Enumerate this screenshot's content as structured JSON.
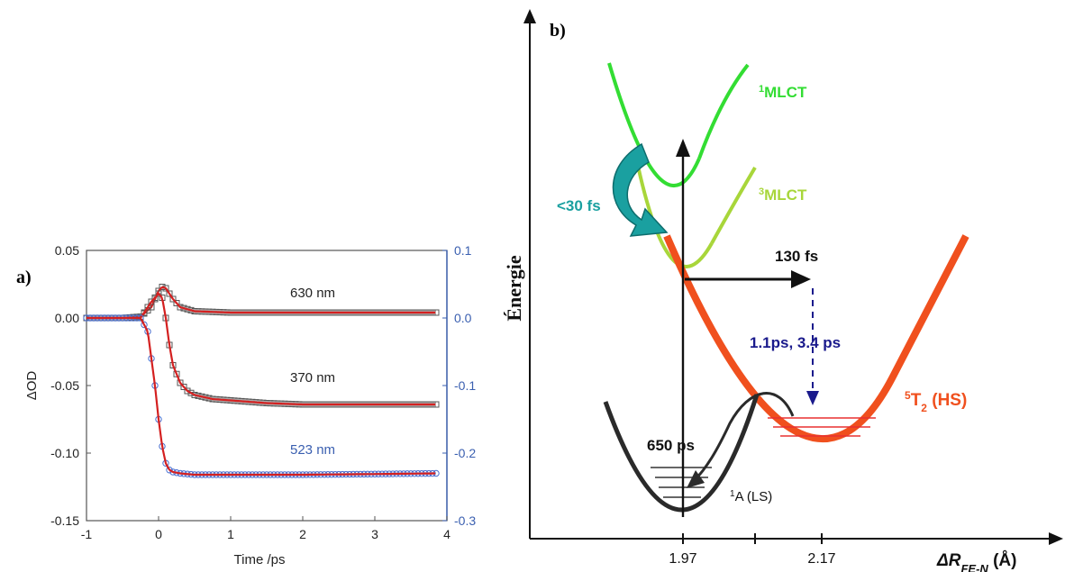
{
  "panels": {
    "a": "a)",
    "b": "b)"
  },
  "chart_data": [
    {
      "type": "line",
      "panel": "a)",
      "xlabel": "Time /ps",
      "ylabel": "ΔOD",
      "xlim": [
        -1,
        4
      ],
      "ylim_left": [
        -0.15,
        0.05
      ],
      "ylim_right": [
        -0.3,
        0.1
      ],
      "x_ticks": [
        "-1",
        "0",
        "1",
        "2",
        "3",
        "4"
      ],
      "y_ticks_left": [
        "0.05",
        "0.00",
        "-0.05",
        "-0.10",
        "-0.15"
      ],
      "y_ticks_right": [
        "0.1",
        "0.0",
        "-0.1",
        "-0.2",
        "-0.3"
      ],
      "right_axis_color": "#3a5fb0",
      "series": [
        {
          "name": "630 nm",
          "axis": "left",
          "color": "#222222",
          "marker": "square",
          "label_color": "#222222",
          "x": [
            -1.0,
            -0.5,
            -0.25,
            -0.1,
            0.0,
            0.05,
            0.1,
            0.15,
            0.2,
            0.3,
            0.5,
            1.0,
            2.0,
            3.0,
            3.85
          ],
          "y": [
            0.0,
            0.0,
            0.001,
            0.008,
            0.02,
            0.023,
            0.022,
            0.018,
            0.014,
            0.008,
            0.005,
            0.004,
            0.004,
            0.004,
            0.004
          ]
        },
        {
          "name": "370 nm",
          "axis": "left",
          "color": "#222222",
          "marker": "square",
          "label_color": "#222222",
          "x": [
            -1.0,
            -0.5,
            -0.25,
            -0.1,
            0.0,
            0.05,
            0.1,
            0.15,
            0.2,
            0.3,
            0.4,
            0.5,
            0.75,
            1.0,
            1.5,
            2.0,
            3.0,
            3.85
          ],
          "y": [
            0.0,
            0.0,
            0.0,
            0.012,
            0.018,
            0.015,
            0.0,
            -0.02,
            -0.035,
            -0.048,
            -0.054,
            -0.057,
            -0.06,
            -0.061,
            -0.063,
            -0.064,
            -0.064,
            -0.064
          ]
        },
        {
          "name": "523 nm",
          "axis": "right",
          "color": "#4a6fd0",
          "marker": "circle",
          "label_color": "#3a5fb0",
          "x": [
            -1.0,
            -0.5,
            -0.25,
            -0.15,
            -0.05,
            0.0,
            0.05,
            0.1,
            0.15,
            0.2,
            0.3,
            0.5,
            1.0,
            2.0,
            3.0,
            3.85
          ],
          "y": [
            0.0,
            0.0,
            0.0,
            -0.02,
            -0.1,
            -0.15,
            -0.19,
            -0.215,
            -0.225,
            -0.228,
            -0.23,
            -0.232,
            -0.232,
            -0.232,
            -0.231,
            -0.23
          ]
        }
      ],
      "fit_color": "#d42020"
    },
    {
      "type": "diagram",
      "panel": "b)",
      "ylabel": "Énergie",
      "xlabel": "ΔR",
      "xlabel_sub": "FE-N",
      "xlabel_unit": " (Å)",
      "x_ticks": [
        "1.97",
        "2.17"
      ],
      "curves": [
        {
          "name": "1MLCT",
          "sup": "1",
          "text": "MLCT",
          "color": "#33dd33"
        },
        {
          "name": "3MLCT",
          "sup": "3",
          "text": "MLCT",
          "color": "#a8d63a"
        },
        {
          "name": "5T2 (HS)",
          "sup": "5",
          "text": "T",
          "sub": "2",
          "tail": " (HS)",
          "color": "#f0501e"
        },
        {
          "name": "1A (LS)",
          "sup": "1",
          "text": "A (LS)",
          "color": "#222222"
        }
      ],
      "annotations": {
        "isc_time": "<30 fs",
        "isc_color": "#1aa0a0",
        "transfer_time": "130 fs",
        "relax_time": "1.1ps, 3.4 ps",
        "relax_color": "#1a1a8c",
        "return_time": "650 ps"
      }
    }
  ]
}
